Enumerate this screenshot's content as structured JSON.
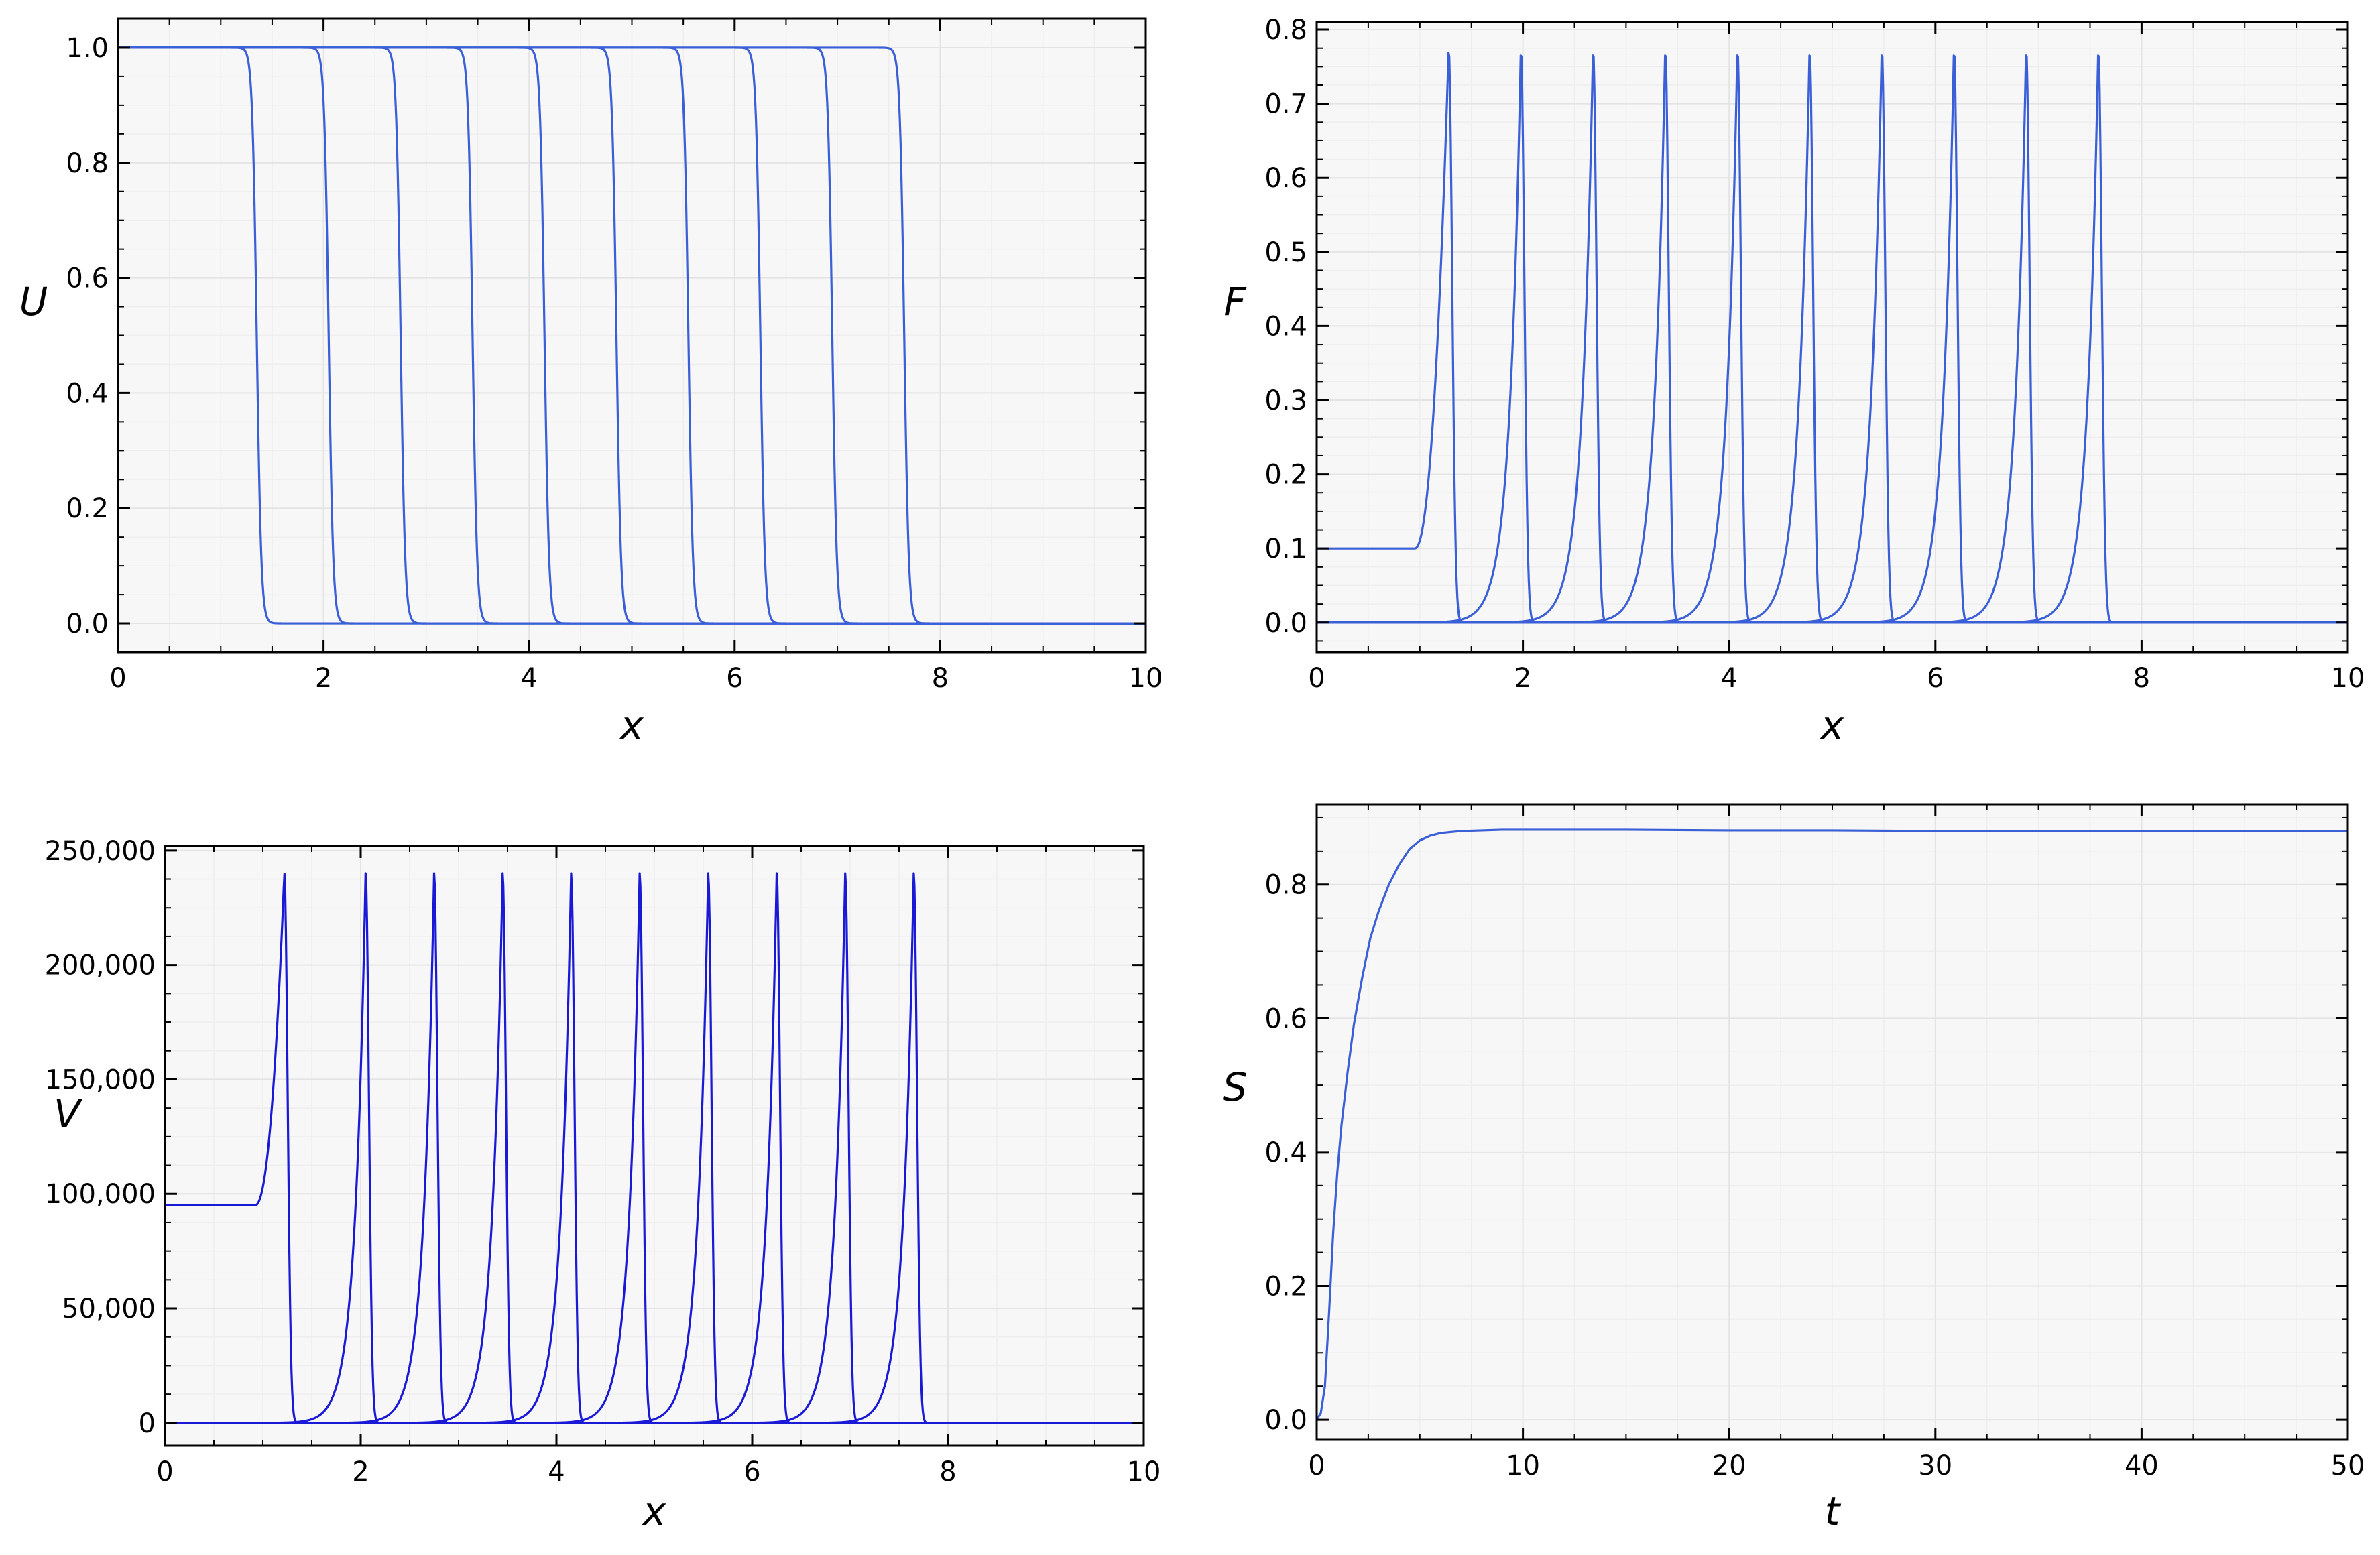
{
  "colors": {
    "line": "#3a5fd6",
    "line_dark": "#1a1ad6",
    "plot_bg": "#f7f7f7",
    "grid": "#e4e4e4"
  },
  "chart_data": [
    {
      "id": "u",
      "type": "line",
      "xlabel": "x",
      "ylabel": "U",
      "xlim": [
        0,
        10
      ],
      "ylim": [
        -0.05,
        1.05
      ],
      "xticks": [
        0,
        2,
        4,
        6,
        8,
        10
      ],
      "xtick_labels": [
        "0",
        "2",
        "4",
        "6",
        "8",
        "10"
      ],
      "yticks": [
        0,
        0.2,
        0.4,
        0.6,
        0.8,
        1.0
      ],
      "ytick_labels": [
        "0.0",
        "0.2",
        "0.4",
        "0.6",
        "0.8",
        "1.0"
      ],
      "grid": true,
      "profile": "front",
      "front_positions": [
        1.35,
        2.05,
        2.75,
        3.45,
        4.15,
        4.85,
        5.55,
        6.25,
        6.95,
        7.65
      ],
      "left_value": 1.0,
      "right_value": 0.0
    },
    {
      "id": "f",
      "type": "line",
      "xlabel": "x",
      "ylabel": "F",
      "xlim": [
        0,
        10
      ],
      "ylim": [
        -0.04,
        0.81
      ],
      "xticks": [
        0,
        2,
        4,
        6,
        8,
        10
      ],
      "xtick_labels": [
        "0",
        "2",
        "4",
        "6",
        "8",
        "10"
      ],
      "yticks": [
        0,
        0.1,
        0.2,
        0.3,
        0.4,
        0.5,
        0.6,
        0.7,
        0.8
      ],
      "ytick_labels": [
        "0.0",
        "0.1",
        "0.2",
        "0.3",
        "0.4",
        "0.5",
        "0.6",
        "0.7",
        "0.8"
      ],
      "grid": true,
      "profile": "pulse",
      "peak_positions": [
        1.28,
        1.98,
        2.68,
        3.38,
        4.08,
        4.78,
        5.48,
        6.18,
        6.88,
        7.58
      ],
      "peak_value": 0.775,
      "initial_plateau": 0.1,
      "plateau_end": 0.95
    },
    {
      "id": "v",
      "type": "line",
      "xlabel": "x",
      "ylabel": "V",
      "xlim": [
        0,
        10
      ],
      "ylim": [
        -10000,
        252000
      ],
      "xticks": [
        0,
        2,
        4,
        6,
        8,
        10
      ],
      "xtick_labels": [
        "0",
        "2",
        "4",
        "6",
        "8",
        "10"
      ],
      "yticks": [
        0,
        50000,
        100000,
        150000,
        200000,
        250000
      ],
      "ytick_labels": [
        "0",
        "50,000",
        "100,000",
        "150,000",
        "200,000",
        "250,000"
      ],
      "grid": true,
      "profile": "pulse",
      "peak_positions": [
        1.22,
        2.05,
        2.75,
        3.45,
        4.15,
        4.85,
        5.55,
        6.25,
        6.95,
        7.65
      ],
      "peak_value": 240000,
      "initial_plateau": 95000,
      "plateau_end": 0.92
    },
    {
      "id": "s",
      "type": "line",
      "xlabel": "t",
      "ylabel": "S",
      "xlim": [
        0,
        50
      ],
      "ylim": [
        -0.03,
        0.92
      ],
      "xticks": [
        0,
        10,
        20,
        30,
        40,
        50
      ],
      "xtick_labels": [
        "0",
        "10",
        "20",
        "30",
        "40",
        "50"
      ],
      "yticks": [
        0,
        0.2,
        0.4,
        0.6,
        0.8
      ],
      "ytick_labels": [
        "0.0",
        "0.2",
        "0.4",
        "0.6",
        "0.8"
      ],
      "grid": true,
      "x": [
        0,
        0.2,
        0.4,
        0.6,
        0.8,
        1.0,
        1.2,
        1.5,
        1.8,
        2.2,
        2.6,
        3.0,
        3.5,
        4.0,
        4.5,
        5.0,
        5.5,
        6.0,
        7.0,
        8.0,
        9.0,
        10.0,
        12.0,
        15.0,
        20.0,
        25.0,
        30.0,
        35.0,
        40.0,
        45.0,
        50.0
      ],
      "y": [
        0.0,
        0.01,
        0.05,
        0.16,
        0.28,
        0.37,
        0.44,
        0.52,
        0.59,
        0.66,
        0.72,
        0.76,
        0.8,
        0.83,
        0.853,
        0.866,
        0.873,
        0.877,
        0.88,
        0.881,
        0.882,
        0.882,
        0.882,
        0.882,
        0.881,
        0.881,
        0.88,
        0.88,
        0.88,
        0.88,
        0.88
      ]
    }
  ]
}
